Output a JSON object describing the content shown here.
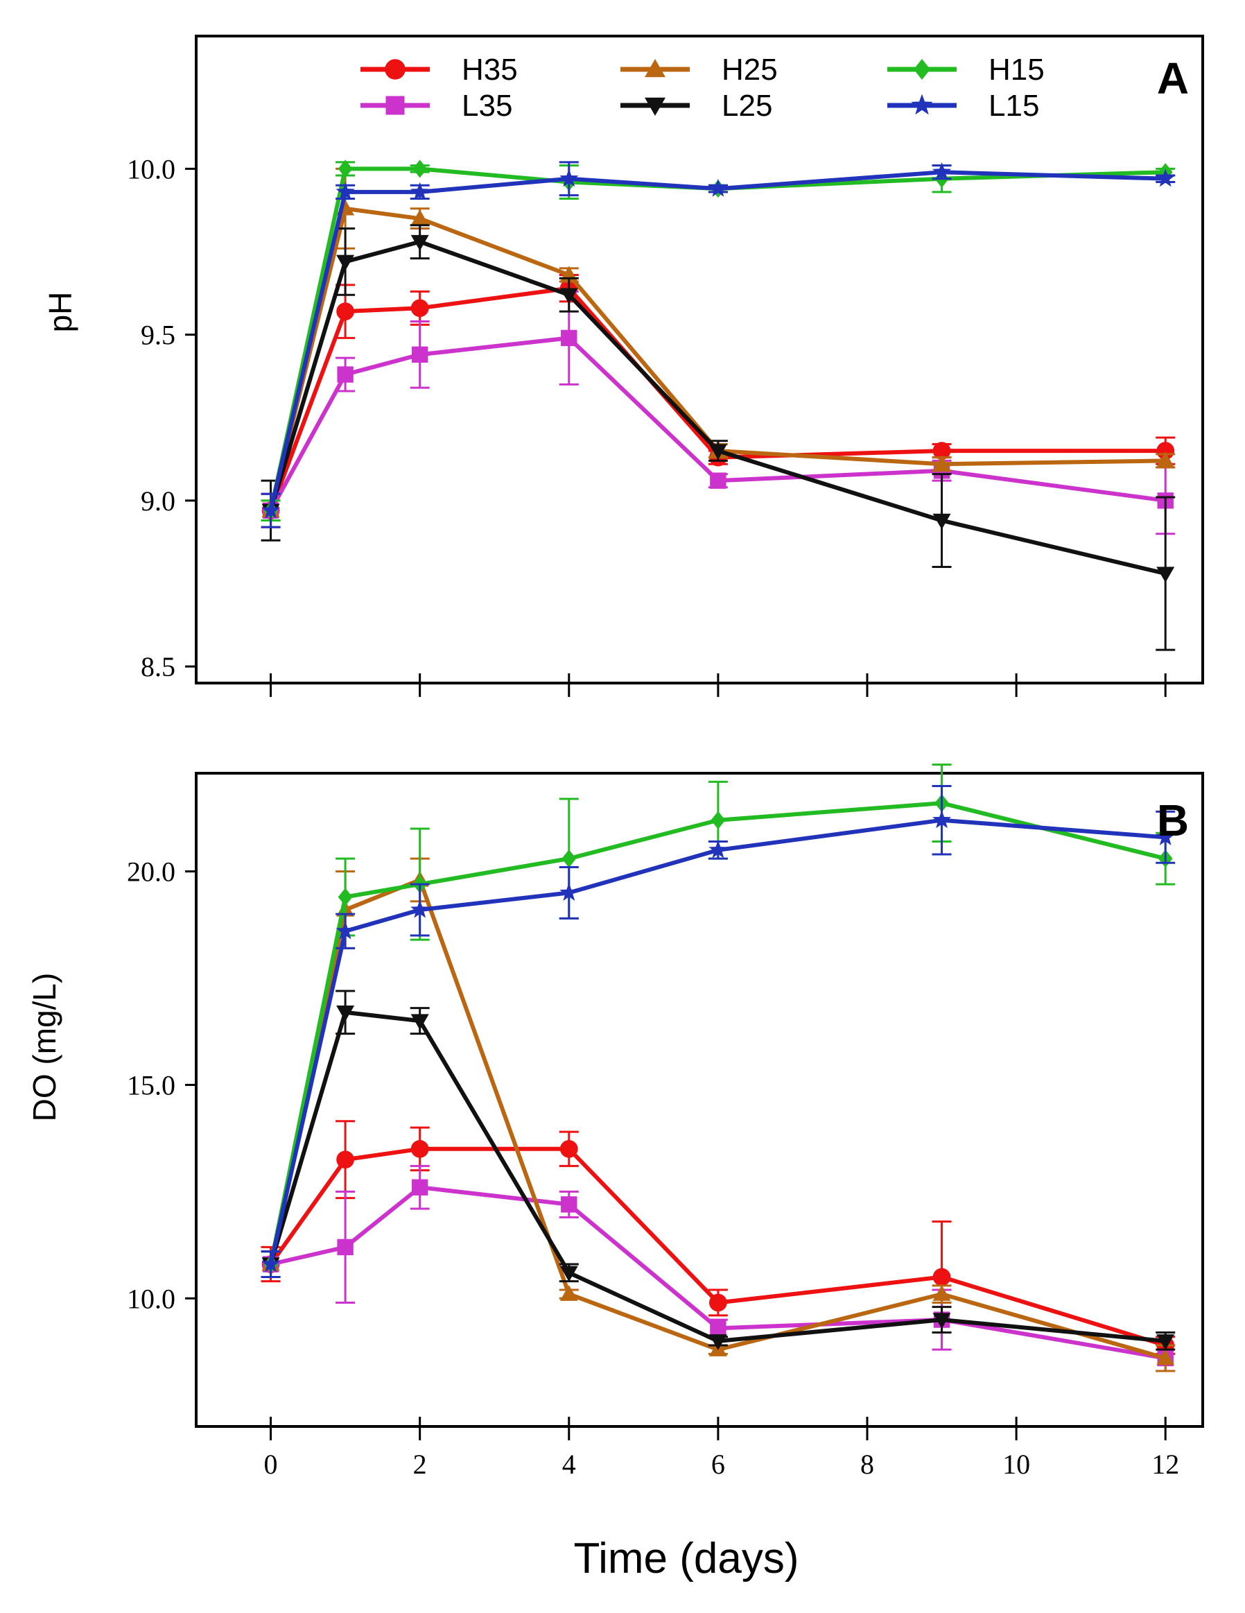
{
  "chart_data": [
    {
      "type": "line",
      "panel_label": "A",
      "xlabel": "",
      "ylabel": "pH",
      "x": [
        0,
        1,
        2,
        4,
        6,
        9,
        12
      ],
      "xlim": [
        -1,
        12.5
      ],
      "ylim": [
        8.45,
        10.4
      ],
      "yticks": [
        8.5,
        9.0,
        9.5,
        10.0
      ],
      "ytick_labels": [
        "8.5",
        "9.0",
        "9.5",
        "10.0"
      ],
      "xticks": [
        0,
        2,
        4,
        6,
        8,
        10,
        12
      ],
      "grid": false,
      "legend_position": "top-center",
      "series": [
        {
          "name": "H35",
          "color": "#ee1111",
          "marker": "circle",
          "values": [
            8.97,
            9.57,
            9.58,
            9.64,
            9.13,
            9.15,
            9.15
          ],
          "errors": [
            0.05,
            0.08,
            0.05,
            0.04,
            0.02,
            0.02,
            0.04
          ]
        },
        {
          "name": "L35",
          "color": "#cc33cc",
          "marker": "square",
          "values": [
            8.97,
            9.38,
            9.44,
            9.49,
            9.06,
            9.09,
            9.0
          ],
          "errors": [
            0.05,
            0.05,
            0.1,
            0.14,
            0.02,
            0.03,
            0.1
          ]
        },
        {
          "name": "H25",
          "color": "#bb6611",
          "marker": "triangle-up",
          "values": [
            8.97,
            9.88,
            9.85,
            9.68,
            9.15,
            9.11,
            9.12
          ],
          "errors": [
            0.03,
            0.12,
            0.03,
            0.02,
            0.02,
            0.02,
            0.02
          ]
        },
        {
          "name": "L25",
          "color": "#111111",
          "marker": "triangle-down",
          "values": [
            8.97,
            9.72,
            9.78,
            9.62,
            9.15,
            8.94,
            8.78
          ],
          "errors": [
            0.09,
            0.1,
            0.05,
            0.05,
            0.03,
            0.14,
            0.23
          ]
        },
        {
          "name": "H15",
          "color": "#22bb22",
          "marker": "diamond",
          "values": [
            8.97,
            10.0,
            10.0,
            9.96,
            9.94,
            9.97,
            9.99
          ],
          "errors": [
            0.03,
            0.02,
            0.01,
            0.05,
            0.01,
            0.04,
            0.01
          ]
        },
        {
          "name": "L15",
          "color": "#2233bb",
          "marker": "star",
          "values": [
            8.97,
            9.93,
            9.93,
            9.97,
            9.94,
            9.99,
            9.97
          ],
          "errors": [
            0.05,
            0.02,
            0.02,
            0.05,
            0.01,
            0.02,
            0.01
          ]
        }
      ]
    },
    {
      "type": "line",
      "panel_label": "B",
      "xlabel": "Time (days)",
      "ylabel": "DO (mg/L)",
      "x": [
        0,
        1,
        2,
        4,
        6,
        9,
        12
      ],
      "xlim": [
        -1,
        12.5
      ],
      "ylim": [
        7.0,
        22.3
      ],
      "yticks": [
        10.0,
        15.0,
        20.0
      ],
      "ytick_labels": [
        "10.0",
        "15.0",
        "20.0"
      ],
      "xticks": [
        0,
        2,
        4,
        6,
        8,
        10,
        12
      ],
      "xtick_labels": [
        "0",
        "2",
        "4",
        "6",
        "8",
        "10",
        "12"
      ],
      "grid": false,
      "series": [
        {
          "name": "H35",
          "color": "#ee1111",
          "marker": "circle",
          "values": [
            10.8,
            13.25,
            13.5,
            13.5,
            9.9,
            10.5,
            8.9
          ],
          "errors": [
            0.4,
            0.9,
            0.5,
            0.4,
            0.3,
            1.3,
            0.2
          ]
        },
        {
          "name": "L35",
          "color": "#cc33cc",
          "marker": "square",
          "values": [
            10.8,
            11.2,
            12.6,
            12.2,
            9.3,
            9.5,
            8.6
          ],
          "errors": [
            0.3,
            1.3,
            0.5,
            0.3,
            0.2,
            0.7,
            0.3
          ]
        },
        {
          "name": "H25",
          "color": "#bb6611",
          "marker": "triangle-up",
          "values": [
            10.8,
            19.1,
            19.8,
            10.1,
            8.8,
            10.1,
            8.6
          ],
          "errors": [
            0.3,
            0.9,
            0.5,
            0.1,
            0.1,
            0.2,
            0.3
          ]
        },
        {
          "name": "L25",
          "color": "#111111",
          "marker": "triangle-down",
          "values": [
            10.8,
            16.7,
            16.5,
            10.6,
            9.0,
            9.5,
            9.0
          ],
          "errors": [
            0.3,
            0.5,
            0.3,
            0.2,
            0.1,
            0.3,
            0.2
          ]
        },
        {
          "name": "H15",
          "color": "#22bb22",
          "marker": "diamond",
          "values": [
            10.8,
            19.4,
            19.7,
            20.3,
            21.2,
            21.6,
            20.3
          ],
          "errors": [
            0.3,
            0.9,
            1.3,
            1.4,
            0.9,
            0.9,
            0.6
          ]
        },
        {
          "name": "L15",
          "color": "#2233bb",
          "marker": "star",
          "values": [
            10.8,
            18.6,
            19.1,
            19.5,
            20.5,
            21.2,
            20.8
          ],
          "errors": [
            0.3,
            0.4,
            0.6,
            0.6,
            0.2,
            0.8,
            0.6
          ]
        }
      ]
    }
  ]
}
